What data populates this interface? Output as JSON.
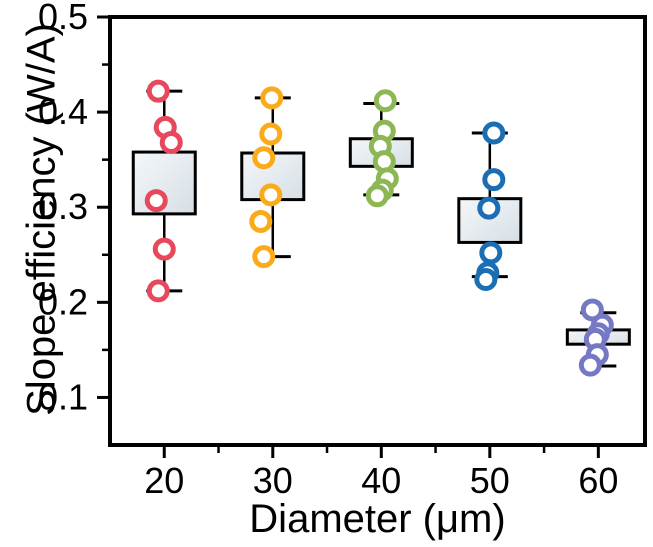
{
  "figure": {
    "background": "#ffffff"
  },
  "chart_data": {
    "type": "box",
    "title": "",
    "xlabel": "Diameter (μm)",
    "ylabel": "Slope efficiency (W/A)",
    "xlim": [
      15,
      64.3
    ],
    "ylim": [
      0.05,
      0.5
    ],
    "grid": false,
    "legend": "none",
    "axis_color": "#000000",
    "box_fill_top": "#f4f7f9",
    "box_fill_bottom": "#d6dfe6",
    "x_ticks": {
      "values": [
        20,
        30,
        40,
        50,
        60
      ],
      "labels": [
        "20",
        "30",
        "40",
        "50",
        "60"
      ]
    },
    "x_minor_ticks": [
      25,
      35,
      45,
      55
    ],
    "y_ticks": {
      "values": [
        0.1,
        0.2,
        0.3,
        0.4,
        0.5
      ],
      "labels": [
        "0.1",
        "0.2",
        "0.3",
        "0.4",
        "0.5"
      ]
    },
    "y_minor_ticks": [
      0.15,
      0.25,
      0.35,
      0.45
    ],
    "groups": [
      {
        "category": 20,
        "label": "20",
        "color": "#e8485c",
        "box": {
          "q1": 0.293,
          "q3": 0.358
        },
        "whiskers": {
          "low": 0.212,
          "high": 0.422
        },
        "points": [
          {
            "y": 0.422,
            "dx": -6
          },
          {
            "y": 0.384,
            "dx": 1
          },
          {
            "y": 0.368,
            "dx": 7
          },
          {
            "y": 0.307,
            "dx": -8
          },
          {
            "y": 0.256,
            "dx": 0
          },
          {
            "y": 0.212,
            "dx": -6
          }
        ]
      },
      {
        "category": 30,
        "label": "30",
        "color": "#fbaa19",
        "box": {
          "q1": 0.308,
          "q3": 0.357
        },
        "whiskers": {
          "low": 0.248,
          "high": 0.415
        },
        "points": [
          {
            "y": 0.415,
            "dx": -1
          },
          {
            "y": 0.377,
            "dx": -2
          },
          {
            "y": 0.352,
            "dx": -9
          },
          {
            "y": 0.313,
            "dx": -2
          },
          {
            "y": 0.285,
            "dx": -12
          },
          {
            "y": 0.248,
            "dx": -9
          }
        ]
      },
      {
        "category": 40,
        "label": "40",
        "color": "#8db654",
        "box": {
          "q1": 0.343,
          "q3": 0.372
        },
        "whiskers": {
          "low": 0.313,
          "high": 0.409
        },
        "points": [
          {
            "y": 0.412,
            "dx": 4
          },
          {
            "y": 0.38,
            "dx": 3
          },
          {
            "y": 0.364,
            "dx": -1
          },
          {
            "y": 0.348,
            "dx": 3
          },
          {
            "y": 0.33,
            "dx": 6
          },
          {
            "y": 0.318,
            "dx": 1
          },
          {
            "y": 0.312,
            "dx": -4
          }
        ]
      },
      {
        "category": 50,
        "label": "50",
        "color": "#1c6eb4",
        "box": {
          "q1": 0.263,
          "q3": 0.309
        },
        "whiskers": {
          "low": 0.227,
          "high": 0.378
        },
        "points": [
          {
            "y": 0.378,
            "dx": 4
          },
          {
            "y": 0.329,
            "dx": 4
          },
          {
            "y": 0.299,
            "dx": -1
          },
          {
            "y": 0.252,
            "dx": 1
          },
          {
            "y": 0.231,
            "dx": -2
          },
          {
            "y": 0.224,
            "dx": -4
          }
        ]
      },
      {
        "category": 60,
        "label": "60",
        "color": "#7579c4",
        "box": {
          "q1": 0.156,
          "q3": 0.171
        },
        "whiskers": {
          "low": 0.133,
          "high": 0.189
        },
        "points": [
          {
            "y": 0.192,
            "dx": -6
          },
          {
            "y": 0.176,
            "dx": 4
          },
          {
            "y": 0.167,
            "dx": 0
          },
          {
            "y": 0.161,
            "dx": -3
          },
          {
            "y": 0.145,
            "dx": -1
          },
          {
            "y": 0.134,
            "dx": -8
          }
        ]
      }
    ]
  }
}
